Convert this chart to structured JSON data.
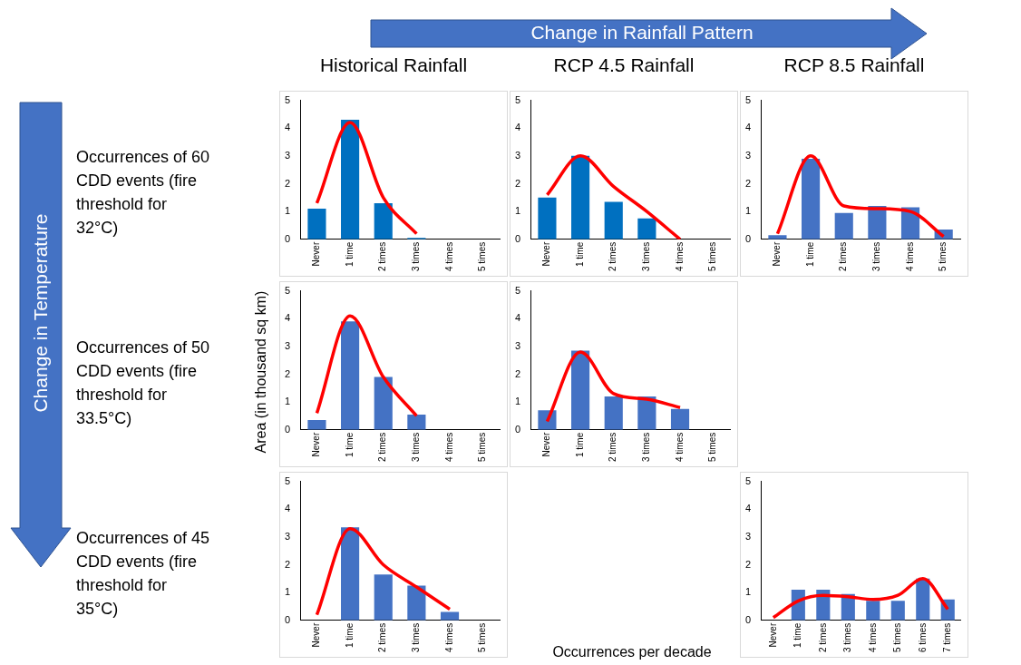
{
  "chart_data": [
    {
      "type": "bar",
      "title": "Historical Rainfall",
      "annotations": [
        "Occurrences of 60 CDD events (fire threshold for 32°C)",
        "Change in Rainfall Pattern",
        "Change in Temperature"
      ],
      "categories": [
        "Never",
        "1 time",
        "2 times",
        "3 times",
        "4 times",
        "5 times"
      ],
      "ylim": [
        0,
        5
      ],
      "yticks": [
        0,
        1,
        2,
        3,
        4,
        5
      ],
      "grid": false,
      "legend": false,
      "series": [
        {
          "color": "#0070c0",
          "values": [
            1.1,
            4.3,
            1.3,
            0.05,
            0,
            0
          ]
        },
        {
          "type": "line",
          "color": "#ff0000",
          "values": [
            1.3,
            4.2,
            1.5,
            0.2,
            null,
            null
          ]
        }
      ]
    },
    {
      "type": "bar",
      "title": "RCP 4.5 Rainfall",
      "categories": [
        "Never",
        "1 time",
        "2 times",
        "3 times",
        "4 times",
        "5 times"
      ],
      "ylim": [
        0,
        5
      ],
      "yticks": [
        0,
        1,
        2,
        3,
        4,
        5
      ],
      "grid": false,
      "legend": false,
      "series": [
        {
          "color": "#0070c0",
          "values": [
            1.5,
            3.0,
            1.35,
            0.75,
            0,
            0
          ]
        },
        {
          "type": "line",
          "color": "#ff0000",
          "values": [
            1.6,
            3.0,
            1.9,
            1.0,
            0,
            null
          ]
        }
      ]
    },
    {
      "type": "bar",
      "title": "RCP 8.5 Rainfall",
      "categories": [
        "Never",
        "1 time",
        "2 times",
        "3 times",
        "4 times",
        "5 times"
      ],
      "ylim": [
        0,
        5
      ],
      "yticks": [
        0,
        1,
        2,
        3,
        4,
        5
      ],
      "grid": false,
      "legend": false,
      "series": [
        {
          "color": "#4472c4",
          "values": [
            0.15,
            2.9,
            0.95,
            1.2,
            1.15,
            0.35
          ]
        },
        {
          "type": "line",
          "color": "#ff0000",
          "values": [
            0.2,
            3.0,
            1.2,
            1.1,
            1.0,
            0.1
          ]
        }
      ]
    },
    {
      "type": "bar",
      "ylabel": "Area (in thousand sq km)",
      "annotations": [
        "Occurrences of 50 CDD events (fire threshold for 33.5°C)"
      ],
      "categories": [
        "Never",
        "1 time",
        "2 times",
        "3 times",
        "4 times",
        "5 times"
      ],
      "ylim": [
        0,
        5
      ],
      "yticks": [
        0,
        1,
        2,
        3,
        4,
        5
      ],
      "grid": false,
      "legend": false,
      "series": [
        {
          "color": "#4472c4",
          "values": [
            0.35,
            3.9,
            1.9,
            0.55,
            0,
            0
          ]
        },
        {
          "type": "line",
          "color": "#ff0000",
          "values": [
            0.6,
            4.1,
            1.9,
            0.5,
            null,
            null
          ]
        }
      ]
    },
    {
      "type": "bar",
      "categories": [
        "Never",
        "1 time",
        "2 times",
        "3 times",
        "4 times",
        "5 times"
      ],
      "ylim": [
        0,
        5
      ],
      "yticks": [
        0,
        1,
        2,
        3,
        4,
        5
      ],
      "grid": false,
      "legend": false,
      "series": [
        {
          "color": "#4472c4",
          "values": [
            0.7,
            2.85,
            1.2,
            1.2,
            0.75,
            0
          ]
        },
        {
          "type": "line",
          "color": "#ff0000",
          "values": [
            0.3,
            2.8,
            1.3,
            1.1,
            0.8,
            null
          ]
        }
      ]
    },
    {
      "type": "bar",
      "xlabel": "Occurrences per decade",
      "annotations": [
        "Occurrences of 45 CDD events (fire threshold for 35°C)"
      ],
      "categories": [
        "Never",
        "1 time",
        "2 times",
        "3 times",
        "4 times",
        "5 times"
      ],
      "ylim": [
        0,
        5
      ],
      "yticks": [
        0,
        1,
        2,
        3,
        4,
        5
      ],
      "grid": false,
      "legend": false,
      "series": [
        {
          "color": "#4472c4",
          "values": [
            0,
            3.35,
            1.65,
            1.25,
            0.3,
            0
          ]
        },
        {
          "type": "line",
          "color": "#ff0000",
          "values": [
            0.2,
            3.3,
            2.0,
            1.2,
            0.4,
            null
          ]
        }
      ]
    },
    {
      "type": "bar",
      "categories": [
        "Never",
        "1 time",
        "2 times",
        "3 times",
        "4 times",
        "5 times",
        "6 times",
        "7 times"
      ],
      "ylim": [
        0,
        5
      ],
      "yticks": [
        0,
        1,
        2,
        3,
        4,
        5
      ],
      "grid": false,
      "legend": false,
      "series": [
        {
          "color": "#4472c4",
          "values": [
            0,
            1.1,
            1.1,
            0.95,
            0.7,
            0.7,
            1.5,
            0.75
          ]
        },
        {
          "type": "line",
          "color": "#ff0000",
          "values": [
            0.1,
            0.7,
            0.9,
            0.85,
            0.75,
            0.9,
            1.5,
            0.4
          ]
        }
      ]
    }
  ]
}
